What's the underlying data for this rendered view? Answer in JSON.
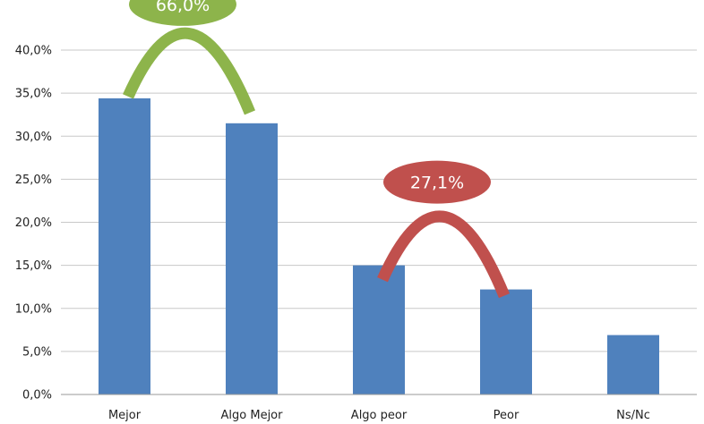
{
  "chart_data": {
    "type": "bar",
    "categories": [
      "Mejor",
      "Algo Mejor",
      "Algo peor",
      "Peor",
      "Ns/Nc"
    ],
    "values": [
      34.4,
      31.5,
      15.0,
      12.2,
      6.9
    ],
    "ylim": [
      0,
      40
    ],
    "y_ticks": [
      "0,0%",
      "5,0%",
      "10,0%",
      "15,0%",
      "20,0%",
      "25,0%",
      "30,0%",
      "35,0%",
      "40,0%"
    ],
    "grid": true,
    "bar_color": "#4F81BD",
    "annotations": [
      {
        "label": "66,0%",
        "spans": [
          "Mejor",
          "Algo Mejor"
        ],
        "color": "#8DB44B"
      },
      {
        "label": "27,1%",
        "spans": [
          "Algo peor",
          "Peor"
        ],
        "color": "#C0504D"
      }
    ]
  }
}
